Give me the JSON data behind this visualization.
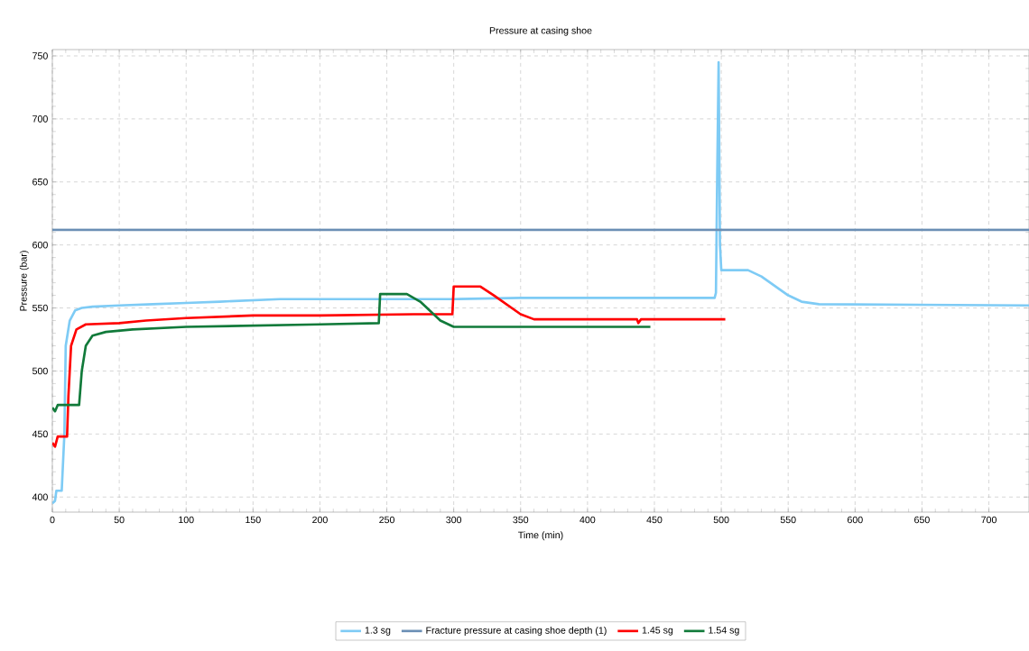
{
  "chart_data": {
    "type": "line",
    "title": "Pressure at casing shoe",
    "xlabel": "Time (min)",
    "ylabel": "Pressure (bar)",
    "xlim": [
      0,
      730
    ],
    "ylim": [
      388,
      755
    ],
    "xticks": [
      0,
      50,
      100,
      150,
      200,
      250,
      300,
      350,
      400,
      450,
      500,
      550,
      600,
      650,
      700
    ],
    "yticks": [
      400,
      450,
      500,
      550,
      600,
      650,
      700,
      750
    ],
    "grid": true,
    "legend": "bottom",
    "marker": "none",
    "line_style": "solid",
    "series": [
      {
        "name": "1.3 sg",
        "color": "#7ecbf5",
        "x": [
          0,
          2,
          3,
          7,
          9,
          10,
          13,
          17,
          22,
          30,
          50,
          75,
          100,
          125,
          170,
          250,
          300,
          350,
          495,
          496,
          497,
          498,
          499,
          500,
          520,
          530,
          550,
          560,
          573,
          730
        ],
        "values": [
          395,
          397,
          405,
          405,
          450,
          520,
          540,
          548,
          550,
          551,
          552,
          553,
          554,
          555,
          557,
          557,
          557,
          558,
          558,
          562,
          660,
          745,
          600,
          580,
          580,
          575,
          560,
          555,
          553,
          552
        ]
      },
      {
        "name": "Fracture pressure at casing shoe depth (1)",
        "color": "#6b8fb5",
        "x": [
          0,
          730
        ],
        "values": [
          612,
          612
        ]
      },
      {
        "name": "1.45 sg",
        "color": "#ff0000",
        "x": [
          0,
          2,
          4,
          11,
          12,
          14,
          18,
          25,
          50,
          70,
          100,
          150,
          200,
          270,
          299,
          300,
          320,
          330,
          350,
          360,
          437,
          438,
          440,
          443,
          503
        ],
        "values": [
          443,
          440,
          448,
          448,
          480,
          520,
          533,
          537,
          538,
          540,
          542,
          544,
          544,
          545,
          545,
          567,
          567,
          560,
          545,
          541,
          541,
          538,
          541,
          541,
          541
        ]
      },
      {
        "name": "1.54 sg",
        "color": "#117a3a",
        "x": [
          0,
          2,
          4,
          20,
          22,
          25,
          30,
          40,
          60,
          100,
          150,
          200,
          244,
          245,
          265,
          275,
          290,
          300,
          320,
          447
        ],
        "values": [
          471,
          468,
          473,
          473,
          500,
          520,
          528,
          531,
          533,
          535,
          536,
          537,
          538,
          561,
          561,
          555,
          540,
          535,
          535,
          535
        ]
      }
    ]
  }
}
